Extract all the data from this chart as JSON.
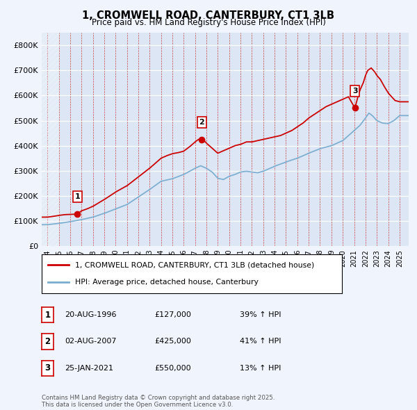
{
  "title": "1, CROMWELL ROAD, CANTERBURY, CT1 3LB",
  "subtitle": "Price paid vs. HM Land Registry's House Price Index (HPI)",
  "legend_label_red": "1, CROMWELL ROAD, CANTERBURY, CT1 3LB (detached house)",
  "legend_label_blue": "HPI: Average price, detached house, Canterbury",
  "footer": "Contains HM Land Registry data © Crown copyright and database right 2025.\nThis data is licensed under the Open Government Licence v3.0.",
  "table_rows": [
    {
      "num": "1",
      "date": "20-AUG-1996",
      "price": "£127,000",
      "change": "39% ↑ HPI"
    },
    {
      "num": "2",
      "date": "02-AUG-2007",
      "price": "£425,000",
      "change": "41% ↑ HPI"
    },
    {
      "num": "3",
      "date": "25-JAN-2021",
      "price": "£550,000",
      "change": "13% ↑ HPI"
    }
  ],
  "sale_points": [
    {
      "year": 1996.63,
      "price": 127000,
      "label": "1"
    },
    {
      "year": 2007.58,
      "price": 425000,
      "label": "2"
    },
    {
      "year": 2021.07,
      "price": 550000,
      "label": "3"
    }
  ],
  "red_knots_t": [
    1994.0,
    1994.5,
    1995.0,
    1995.5,
    1996.0,
    1996.63,
    1997.0,
    1997.5,
    1998.0,
    1999.0,
    2000.0,
    2001.0,
    2002.0,
    2003.0,
    2003.5,
    2004.0,
    2004.5,
    2005.0,
    2005.5,
    2006.0,
    2006.5,
    2007.0,
    2007.3,
    2007.58,
    2007.8,
    2008.0,
    2008.5,
    2009.0,
    2009.5,
    2010.0,
    2010.5,
    2011.0,
    2011.5,
    2012.0,
    2012.5,
    2013.0,
    2013.5,
    2014.0,
    2014.5,
    2015.0,
    2015.5,
    2016.0,
    2016.5,
    2017.0,
    2017.5,
    2018.0,
    2018.5,
    2019.0,
    2019.5,
    2020.0,
    2020.5,
    2021.07,
    2021.3,
    2021.5,
    2021.8,
    2022.0,
    2022.2,
    2022.5,
    2022.8,
    2023.0,
    2023.3,
    2023.6,
    2024.0,
    2024.3,
    2024.6,
    2025.0
  ],
  "red_knots_v": [
    115000,
    118000,
    122000,
    125000,
    126000,
    127000,
    140000,
    148000,
    158000,
    185000,
    215000,
    240000,
    275000,
    310000,
    330000,
    350000,
    360000,
    368000,
    372000,
    378000,
    395000,
    415000,
    425000,
    425000,
    420000,
    410000,
    390000,
    370000,
    380000,
    390000,
    400000,
    405000,
    415000,
    415000,
    420000,
    425000,
    430000,
    435000,
    440000,
    450000,
    460000,
    475000,
    490000,
    510000,
    525000,
    540000,
    555000,
    565000,
    575000,
    585000,
    595000,
    550000,
    590000,
    620000,
    650000,
    680000,
    700000,
    710000,
    695000,
    680000,
    665000,
    640000,
    610000,
    595000,
    580000,
    575000
  ],
  "blue_knots_t": [
    1994.0,
    1995.0,
    1996.0,
    1997.0,
    1998.0,
    1999.0,
    2000.0,
    2001.0,
    2002.0,
    2003.0,
    2004.0,
    2005.0,
    2006.0,
    2007.0,
    2007.5,
    2008.0,
    2008.5,
    2009.0,
    2009.5,
    2010.0,
    2010.5,
    2011.0,
    2011.5,
    2012.0,
    2012.5,
    2013.0,
    2013.5,
    2014.0,
    2015.0,
    2016.0,
    2017.0,
    2018.0,
    2019.0,
    2019.5,
    2020.0,
    2020.5,
    2021.0,
    2021.5,
    2022.0,
    2022.3,
    2022.6,
    2023.0,
    2023.5,
    2024.0,
    2024.5,
    2025.0
  ],
  "blue_knots_v": [
    85000,
    90000,
    97000,
    105000,
    115000,
    130000,
    148000,
    165000,
    195000,
    225000,
    258000,
    268000,
    285000,
    310000,
    320000,
    310000,
    295000,
    270000,
    265000,
    278000,
    285000,
    295000,
    298000,
    295000,
    292000,
    298000,
    308000,
    318000,
    335000,
    350000,
    370000,
    388000,
    400000,
    410000,
    420000,
    440000,
    460000,
    480000,
    510000,
    530000,
    520000,
    500000,
    490000,
    488000,
    500000,
    520000
  ],
  "ylim": [
    0,
    850000
  ],
  "yticks": [
    0,
    100000,
    200000,
    300000,
    400000,
    500000,
    600000,
    700000,
    800000
  ],
  "ylabels": [
    "£0",
    "£100K",
    "£200K",
    "£300K",
    "£400K",
    "£500K",
    "£600K",
    "£700K",
    "£800K"
  ],
  "xticks": [
    1994,
    1995,
    1996,
    1997,
    1998,
    1999,
    2000,
    2001,
    2002,
    2003,
    2004,
    2005,
    2006,
    2007,
    2008,
    2009,
    2010,
    2011,
    2012,
    2013,
    2014,
    2015,
    2016,
    2017,
    2018,
    2019,
    2020,
    2021,
    2022,
    2023,
    2024,
    2025
  ],
  "xlim": [
    1993.5,
    2025.8
  ],
  "bg_color": "#f0f4fc",
  "plot_bg": "#dce6f5",
  "red_color": "#cc0000",
  "blue_color": "#7aadcf"
}
